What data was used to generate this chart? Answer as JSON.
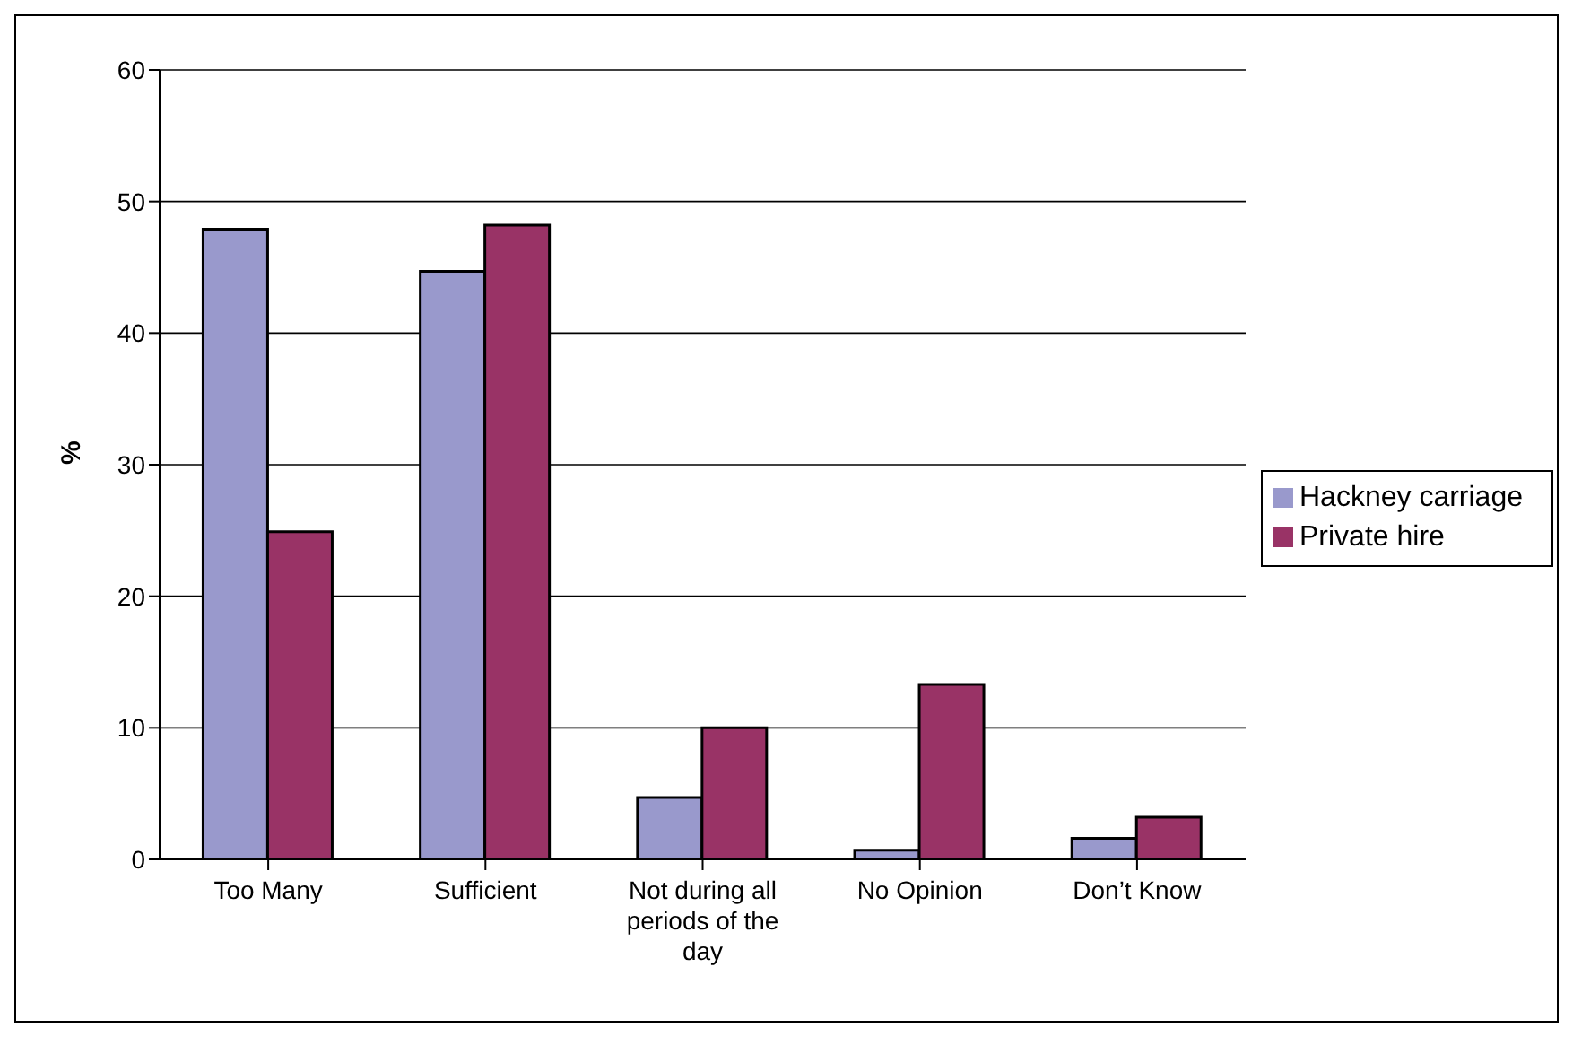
{
  "chart_data": {
    "type": "bar",
    "ylabel": "%",
    "categories": [
      "Too Many",
      "Sufficient",
      "Not during all periods of the day",
      "No Opinion",
      "Don’t Know"
    ],
    "series": [
      {
        "name": "Hackney carriage",
        "color": "#9999cc",
        "values": [
          47.9,
          44.7,
          4.7,
          0.7,
          1.6
        ]
      },
      {
        "name": "Private hire",
        "color": "#993366",
        "values": [
          24.9,
          48.2,
          10,
          13.3,
          3.2
        ]
      }
    ],
    "ylim": [
      0,
      60
    ],
    "yticks": [
      0,
      10,
      20,
      30,
      40,
      50,
      60
    ],
    "grid": "y",
    "legend": "right"
  }
}
